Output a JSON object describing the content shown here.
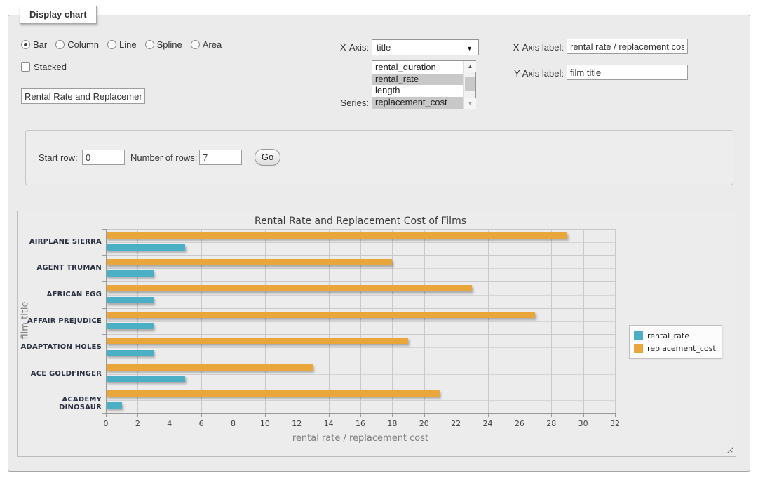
{
  "panel": {
    "legend": "Display chart"
  },
  "controls": {
    "chart_types": {
      "options": [
        {
          "label": "Bar",
          "selected": true
        },
        {
          "label": "Column",
          "selected": false
        },
        {
          "label": "Line",
          "selected": false
        },
        {
          "label": "Spline",
          "selected": false
        },
        {
          "label": "Area",
          "selected": false
        }
      ]
    },
    "stacked": {
      "label": "Stacked",
      "checked": false
    },
    "chart_title_input": {
      "value": "Rental Rate and Replacement Cost of Films"
    },
    "x_axis_select": {
      "label": "X-Axis:",
      "value": "title"
    },
    "series_select": {
      "label": "Series:",
      "options": [
        {
          "label": "rental_duration",
          "selected": false
        },
        {
          "label": "rental_rate",
          "selected": true
        },
        {
          "label": "length",
          "selected": false
        },
        {
          "label": "replacement_cost",
          "selected": true
        }
      ]
    },
    "x_axis_label_input": {
      "label": "X-Axis label:",
      "value": "rental rate / replacement cost"
    },
    "y_axis_label_input": {
      "label": "Y-Axis label:",
      "value": "film title"
    },
    "pagination": {
      "start_row_label": "Start row:",
      "start_row_value": "0",
      "num_rows_label": "Number of rows:",
      "num_rows_value": "7",
      "go_label": "Go"
    }
  },
  "chart_data": {
    "type": "bar",
    "orientation": "horizontal",
    "title": "Rental Rate and Replacement Cost of Films",
    "xlabel": "rental rate / replacement cost",
    "ylabel": "film title",
    "categories": [
      "AIRPLANE SIERRA",
      "AGENT TRUMAN",
      "AFRICAN EGG",
      "AFFAIR PREJUDICE",
      "ADAPTATION HOLES",
      "ACE GOLDFINGER",
      "ACADEMY DINOSAUR"
    ],
    "series": [
      {
        "name": "rental_rate",
        "color": "#4bb0c6",
        "values": [
          4.99,
          2.99,
          2.99,
          2.99,
          2.99,
          4.99,
          0.99
        ]
      },
      {
        "name": "replacement_cost",
        "color": "#e9a63a",
        "values": [
          28.99,
          17.99,
          22.99,
          26.99,
          18.99,
          12.99,
          20.99
        ]
      }
    ],
    "xlim": [
      0,
      32
    ],
    "xticks": [
      0,
      2,
      4,
      6,
      8,
      10,
      12,
      14,
      16,
      18,
      20,
      22,
      24,
      26,
      28,
      30,
      32
    ],
    "grid": true,
    "legend_position": "right"
  }
}
